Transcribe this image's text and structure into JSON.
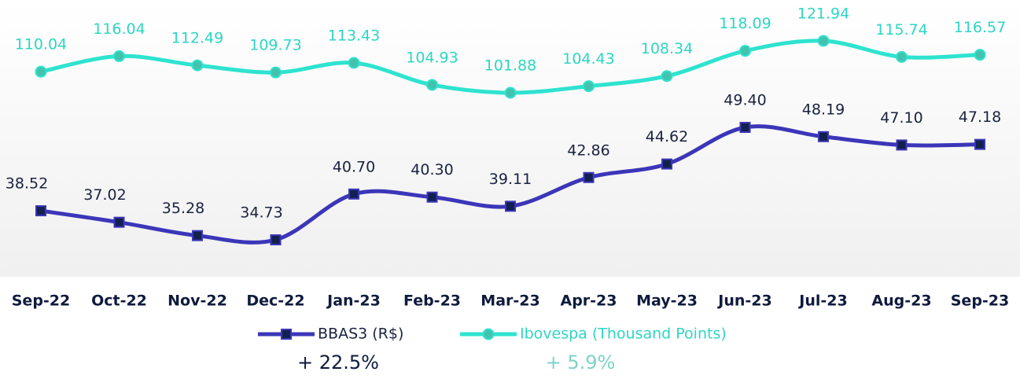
{
  "chart_data": {
    "type": "line",
    "categories": [
      "Sep-22",
      "Oct-22",
      "Nov-22",
      "Dec-22",
      "Jan-23",
      "Feb-23",
      "Mar-23",
      "Apr-23",
      "May-23",
      "Jun-23",
      "Jul-23",
      "Aug-23",
      "Sep-23"
    ],
    "series": [
      {
        "name": "BBAS3  (R$)",
        "color": "#3b36b8",
        "marker_color": "#12204f",
        "values": [
          38.52,
          37.02,
          35.28,
          34.73,
          40.7,
          40.3,
          39.11,
          42.86,
          44.62,
          49.4,
          48.19,
          47.1,
          47.18
        ],
        "value_labels": [
          "38.52",
          "37.02",
          "35.28",
          "34.73",
          "40.70",
          "40.30",
          "39.11",
          "42.86",
          "44.62",
          "49.40",
          "48.19",
          "47.10",
          "47.18"
        ],
        "change": "+ 22.5%"
      },
      {
        "name": "Ibovespa (Thousand Points)",
        "color": "#2ee3cf",
        "marker_color": "#43c3ad",
        "axis": "y2",
        "values": [
          110.04,
          116.04,
          112.49,
          109.73,
          113.43,
          104.93,
          101.88,
          104.43,
          108.34,
          118.09,
          121.94,
          115.74,
          116.57
        ],
        "change": "+ 5.9%"
      }
    ]
  }
}
